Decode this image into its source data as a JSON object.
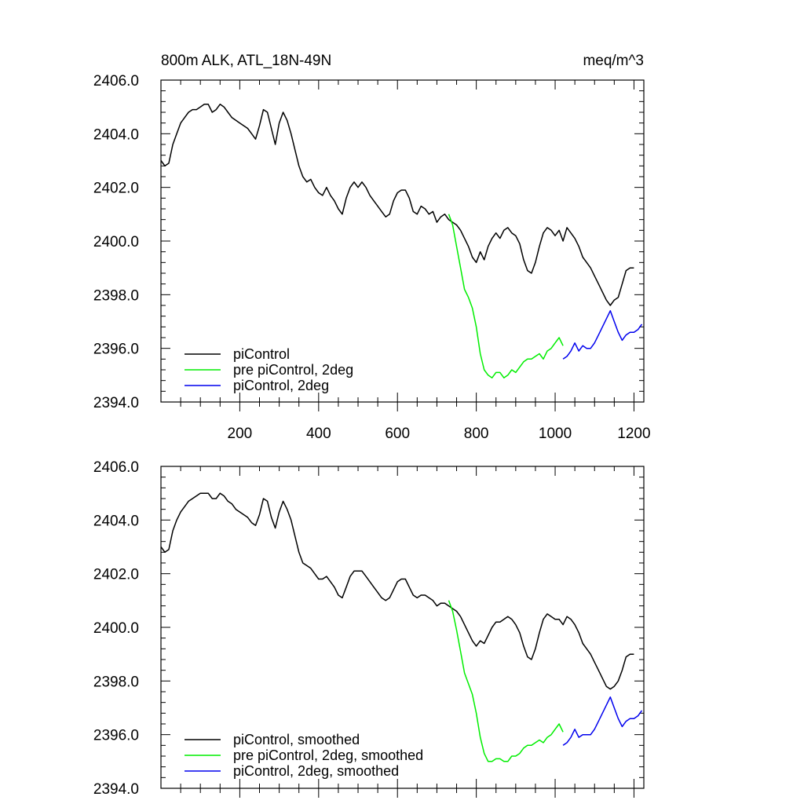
{
  "figure": {
    "title_left": "800m ALK, ATL_18N-49N",
    "title_right": "meq/m^3"
  },
  "chart_data": [
    {
      "type": "line",
      "title": "800m ALK, ATL_18N-49N",
      "units": "meq/m^3",
      "xlim": [
        0,
        1225
      ],
      "ylim": [
        2394,
        2406
      ],
      "xticks": [
        200,
        400,
        600,
        800,
        1000,
        1200
      ],
      "xtick_labels": [
        "200",
        "400",
        "600",
        "800",
        "1000",
        "1200"
      ],
      "yticks": [
        2394,
        2396,
        2398,
        2400,
        2402,
        2404,
        2406
      ],
      "ytick_labels": [
        "2394.0",
        "2396.0",
        "2398.0",
        "2400.0",
        "2402.0",
        "2404.0",
        "2406.0"
      ],
      "legend_position": "bottom-left",
      "series": [
        {
          "name": "piControl",
          "color": "#000000",
          "x": [
            0,
            10,
            20,
            30,
            40,
            50,
            60,
            70,
            80,
            90,
            100,
            110,
            120,
            130,
            140,
            150,
            160,
            170,
            180,
            190,
            200,
            210,
            220,
            230,
            240,
            250,
            260,
            270,
            280,
            290,
            300,
            310,
            320,
            330,
            340,
            350,
            360,
            370,
            380,
            390,
            400,
            410,
            420,
            430,
            440,
            450,
            460,
            470,
            480,
            490,
            500,
            510,
            520,
            530,
            540,
            550,
            560,
            570,
            580,
            590,
            600,
            610,
            620,
            630,
            640,
            650,
            660,
            670,
            680,
            690,
            700,
            710,
            720,
            730,
            740,
            750,
            760,
            770,
            780,
            790,
            800,
            810,
            820,
            830,
            840,
            850,
            860,
            870,
            880,
            890,
            900,
            910,
            920,
            930,
            940,
            950,
            960,
            970,
            980,
            990,
            1000,
            1010,
            1020,
            1030,
            1040,
            1050,
            1060,
            1070,
            1080,
            1090,
            1100,
            1110,
            1120,
            1130,
            1140,
            1150,
            1160,
            1170,
            1180,
            1190,
            1200
          ],
          "values": [
            2403.0,
            2402.8,
            2402.9,
            2403.6,
            2404.0,
            2404.4,
            2404.6,
            2404.8,
            2404.9,
            2404.9,
            2405.0,
            2405.1,
            2405.1,
            2404.8,
            2404.9,
            2405.1,
            2405.0,
            2404.8,
            2404.6,
            2404.5,
            2404.4,
            2404.3,
            2404.2,
            2404.0,
            2403.8,
            2404.3,
            2404.9,
            2404.8,
            2404.2,
            2403.6,
            2404.4,
            2404.8,
            2404.5,
            2404.0,
            2403.4,
            2402.8,
            2402.4,
            2402.2,
            2402.3,
            2402.0,
            2401.8,
            2401.7,
            2402.0,
            2401.7,
            2401.5,
            2401.2,
            2401.0,
            2401.6,
            2402.0,
            2402.2,
            2402.0,
            2402.2,
            2402.0,
            2401.7,
            2401.5,
            2401.3,
            2401.1,
            2400.9,
            2401.0,
            2401.5,
            2401.8,
            2401.9,
            2401.9,
            2401.6,
            2401.1,
            2401.0,
            2401.3,
            2401.2,
            2401.0,
            2401.1,
            2400.7,
            2400.9,
            2401.0,
            2400.8,
            2400.7,
            2400.6,
            2400.4,
            2400.1,
            2399.8,
            2399.4,
            2399.2,
            2399.6,
            2399.3,
            2399.8,
            2400.1,
            2400.3,
            2400.1,
            2400.4,
            2400.5,
            2400.3,
            2400.2,
            2399.9,
            2399.3,
            2398.9,
            2398.8,
            2399.2,
            2399.8,
            2400.3,
            2400.5,
            2400.4,
            2400.2,
            2400.4,
            2400.0,
            2400.5,
            2400.3,
            2400.1,
            2399.8,
            2399.4,
            2399.2,
            2399.0,
            2398.7,
            2398.4,
            2398.1,
            2397.8,
            2397.6,
            2397.8,
            2397.9,
            2398.4,
            2398.9,
            2399.0,
            2399.0
          ]
        },
        {
          "name": "pre piControl, 2deg",
          "color": "#00ee00",
          "x": [
            730,
            740,
            750,
            760,
            770,
            780,
            790,
            800,
            810,
            820,
            830,
            840,
            850,
            860,
            870,
            880,
            890,
            900,
            910,
            920,
            930,
            940,
            950,
            960,
            970,
            980,
            990,
            1000,
            1010,
            1020
          ],
          "values": [
            2401.0,
            2400.6,
            2399.8,
            2399.0,
            2398.2,
            2397.9,
            2397.5,
            2396.8,
            2395.8,
            2395.2,
            2395.0,
            2394.9,
            2395.1,
            2395.1,
            2394.9,
            2395.0,
            2395.2,
            2395.1,
            2395.3,
            2395.5,
            2395.6,
            2395.6,
            2395.7,
            2395.8,
            2395.6,
            2395.9,
            2396.0,
            2396.2,
            2396.4,
            2396.1
          ]
        },
        {
          "name": "piControl, 2deg",
          "color": "#0000ee",
          "x": [
            1020,
            1030,
            1040,
            1050,
            1060,
            1070,
            1080,
            1090,
            1100,
            1110,
            1120,
            1130,
            1140,
            1150,
            1160,
            1170,
            1180,
            1190,
            1200,
            1210,
            1220
          ],
          "values": [
            2395.6,
            2395.7,
            2395.9,
            2396.2,
            2395.9,
            2396.1,
            2396.0,
            2396.0,
            2396.2,
            2396.5,
            2396.8,
            2397.1,
            2397.4,
            2397.0,
            2396.6,
            2396.3,
            2396.5,
            2396.6,
            2396.6,
            2396.7,
            2396.9
          ]
        }
      ]
    },
    {
      "type": "line",
      "xlim": [
        0,
        1225
      ],
      "ylim": [
        2394,
        2406
      ],
      "xticks": [
        200,
        400,
        600,
        800,
        1000,
        1200
      ],
      "yticks": [
        2394,
        2396,
        2398,
        2400,
        2402,
        2404,
        2406
      ],
      "ytick_labels": [
        "2394.0",
        "2396.0",
        "2398.0",
        "2400.0",
        "2402.0",
        "2404.0",
        "2406.0"
      ],
      "legend_position": "bottom-left",
      "series": [
        {
          "name": "piControl, smoothed",
          "color": "#000000",
          "x": [
            0,
            10,
            20,
            30,
            40,
            50,
            60,
            70,
            80,
            90,
            100,
            110,
            120,
            130,
            140,
            150,
            160,
            170,
            180,
            190,
            200,
            210,
            220,
            230,
            240,
            250,
            260,
            270,
            280,
            290,
            300,
            310,
            320,
            330,
            340,
            350,
            360,
            370,
            380,
            390,
            400,
            410,
            420,
            430,
            440,
            450,
            460,
            470,
            480,
            490,
            500,
            510,
            520,
            530,
            540,
            550,
            560,
            570,
            580,
            590,
            600,
            610,
            620,
            630,
            640,
            650,
            660,
            670,
            680,
            690,
            700,
            710,
            720,
            730,
            740,
            750,
            760,
            770,
            780,
            790,
            800,
            810,
            820,
            830,
            840,
            850,
            860,
            870,
            880,
            890,
            900,
            910,
            920,
            930,
            940,
            950,
            960,
            970,
            980,
            990,
            1000,
            1010,
            1020,
            1030,
            1040,
            1050,
            1060,
            1070,
            1080,
            1090,
            1100,
            1110,
            1120,
            1130,
            1140,
            1150,
            1160,
            1170,
            1180,
            1190,
            1200
          ],
          "values": [
            2403.0,
            2402.8,
            2402.9,
            2403.6,
            2404.0,
            2404.3,
            2404.5,
            2404.7,
            2404.8,
            2404.9,
            2405.0,
            2405.0,
            2405.0,
            2404.8,
            2404.8,
            2405.0,
            2404.9,
            2404.7,
            2404.6,
            2404.4,
            2404.3,
            2404.2,
            2404.1,
            2403.9,
            2403.8,
            2404.2,
            2404.8,
            2404.7,
            2404.1,
            2403.7,
            2404.3,
            2404.7,
            2404.4,
            2404.0,
            2403.4,
            2402.8,
            2402.4,
            2402.3,
            2402.2,
            2402.0,
            2401.8,
            2401.8,
            2401.9,
            2401.7,
            2401.5,
            2401.2,
            2401.1,
            2401.5,
            2401.9,
            2402.1,
            2402.1,
            2402.1,
            2401.9,
            2401.7,
            2401.5,
            2401.3,
            2401.1,
            2401.0,
            2401.1,
            2401.4,
            2401.7,
            2401.8,
            2401.8,
            2401.5,
            2401.2,
            2401.1,
            2401.2,
            2401.2,
            2401.1,
            2401.0,
            2400.8,
            2400.9,
            2400.9,
            2400.8,
            2400.7,
            2400.6,
            2400.4,
            2400.1,
            2399.8,
            2399.5,
            2399.3,
            2399.5,
            2399.4,
            2399.7,
            2400.0,
            2400.2,
            2400.2,
            2400.3,
            2400.4,
            2400.3,
            2400.1,
            2399.8,
            2399.3,
            2398.9,
            2398.8,
            2399.2,
            2399.8,
            2400.3,
            2400.5,
            2400.4,
            2400.3,
            2400.3,
            2400.1,
            2400.4,
            2400.3,
            2400.1,
            2399.8,
            2399.4,
            2399.2,
            2399.0,
            2398.7,
            2398.4,
            2398.1,
            2397.8,
            2397.7,
            2397.8,
            2398.0,
            2398.4,
            2398.9,
            2399.0,
            2399.0
          ]
        },
        {
          "name": "pre piControl, 2deg, smoothed",
          "color": "#00ee00",
          "x": [
            730,
            740,
            750,
            760,
            770,
            780,
            790,
            800,
            810,
            820,
            830,
            840,
            850,
            860,
            870,
            880,
            890,
            900,
            910,
            920,
            930,
            940,
            950,
            960,
            970,
            980,
            990,
            1000,
            1010,
            1020
          ],
          "values": [
            2401.0,
            2400.6,
            2399.9,
            2399.1,
            2398.3,
            2397.9,
            2397.5,
            2396.8,
            2395.9,
            2395.3,
            2395.0,
            2395.0,
            2395.1,
            2395.1,
            2395.0,
            2395.0,
            2395.2,
            2395.2,
            2395.3,
            2395.5,
            2395.6,
            2395.6,
            2395.7,
            2395.8,
            2395.7,
            2395.9,
            2396.0,
            2396.2,
            2396.4,
            2396.1
          ]
        },
        {
          "name": "piControl, 2deg, smoothed",
          "color": "#0000ee",
          "x": [
            1020,
            1030,
            1040,
            1050,
            1060,
            1070,
            1080,
            1090,
            1100,
            1110,
            1120,
            1130,
            1140,
            1150,
            1160,
            1170,
            1180,
            1190,
            1200,
            1210,
            1220
          ],
          "values": [
            2395.6,
            2395.7,
            2395.9,
            2396.2,
            2395.9,
            2396.0,
            2396.0,
            2396.0,
            2396.2,
            2396.5,
            2396.8,
            2397.1,
            2397.4,
            2397.0,
            2396.6,
            2396.3,
            2396.5,
            2396.6,
            2396.6,
            2396.7,
            2396.9
          ]
        }
      ]
    }
  ]
}
